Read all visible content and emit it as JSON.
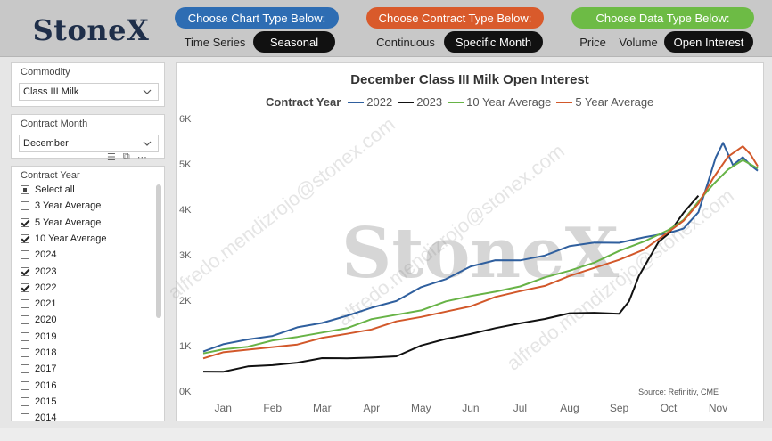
{
  "header": {
    "logo": "StoneX",
    "chart_type": {
      "label": "Choose Chart Type Below:",
      "options": [
        "Time Series",
        "Seasonal"
      ],
      "selected": "Seasonal"
    },
    "contract_type": {
      "label": "Choose Contract Type Below:",
      "options": [
        "Continuous",
        "Specific Month"
      ],
      "selected": "Specific Month"
    },
    "data_type": {
      "label": "Choose Data Type Below:",
      "options": [
        "Price",
        "Volume",
        "Open Interest"
      ],
      "selected": "Open Interest"
    }
  },
  "sidebar": {
    "commodity": {
      "label": "Commodity",
      "value": "Class III Milk"
    },
    "contract_month": {
      "label": "Contract Month",
      "value": "December"
    },
    "contract_year": {
      "label": "Contract Year",
      "items": [
        {
          "label": "Select all",
          "state": "partial"
        },
        {
          "label": "3 Year Average",
          "state": "unchecked"
        },
        {
          "label": "5 Year Average",
          "state": "checked"
        },
        {
          "label": "10 Year Average",
          "state": "checked"
        },
        {
          "label": "2024",
          "state": "unchecked"
        },
        {
          "label": "2023",
          "state": "checked"
        },
        {
          "label": "2022",
          "state": "checked"
        },
        {
          "label": "2021",
          "state": "unchecked"
        },
        {
          "label": "2020",
          "state": "unchecked"
        },
        {
          "label": "2019",
          "state": "unchecked"
        },
        {
          "label": "2018",
          "state": "unchecked"
        },
        {
          "label": "2017",
          "state": "unchecked"
        },
        {
          "label": "2016",
          "state": "unchecked"
        },
        {
          "label": "2015",
          "state": "unchecked"
        },
        {
          "label": "2014",
          "state": "unchecked"
        }
      ]
    }
  },
  "chart": {
    "source": "Source: Refinitiv, CME",
    "watermark_logo": "StoneX",
    "watermark_email": "alfredo.mendizrojo@stonex.com"
  },
  "chart_data": {
    "type": "line",
    "title": "December Class III Milk Open Interest",
    "legend_title": "Contract Year",
    "xlabel": "",
    "ylabel": "",
    "x_ticks": [
      "Jan",
      "Feb",
      "Mar",
      "Apr",
      "May",
      "Jun",
      "Jul",
      "Aug",
      "Sep",
      "Oct",
      "Nov"
    ],
    "y_ticks": [
      "0K",
      "1K",
      "2K",
      "3K",
      "4K",
      "5K",
      "6K"
    ],
    "ylim": [
      0,
      6000
    ],
    "xlim": [
      0.6,
      11.8
    ],
    "grid": false,
    "legend_position": "top",
    "series": [
      {
        "name": "2022",
        "color": "#2f5f9e",
        "x": [
          0.6,
          1.0,
          1.5,
          2.0,
          2.5,
          3.0,
          3.5,
          4.0,
          4.5,
          5.0,
          5.5,
          6.0,
          6.5,
          7.0,
          7.5,
          8.0,
          8.5,
          9.0,
          9.5,
          10.0,
          10.3,
          10.6,
          10.8,
          10.95,
          11.1,
          11.3,
          11.5,
          11.65,
          11.8
        ],
        "y": [
          870,
          1020,
          1150,
          1250,
          1380,
          1500,
          1680,
          1800,
          1970,
          2300,
          2500,
          2720,
          2880,
          2900,
          2950,
          3180,
          3280,
          3300,
          3360,
          3480,
          3600,
          3900,
          4600,
          5150,
          5500,
          4950,
          5150,
          5000,
          4850
        ]
      },
      {
        "name": "2023",
        "color": "#111111",
        "x": [
          0.6,
          1.0,
          1.5,
          2.0,
          2.5,
          3.0,
          3.5,
          4.0,
          4.5,
          5.0,
          5.5,
          6.0,
          6.5,
          7.0,
          7.5,
          8.0,
          8.5,
          9.0,
          9.2,
          9.4,
          9.6,
          9.8,
          10.0,
          10.3,
          10.6
        ],
        "y": [
          430,
          460,
          520,
          570,
          650,
          690,
          710,
          750,
          800,
          980,
          1150,
          1280,
          1350,
          1480,
          1600,
          1750,
          1700,
          1700,
          2000,
          2500,
          2900,
          3300,
          3500,
          3900,
          4300
        ]
      },
      {
        "name": "10 Year Average",
        "color": "#67b346",
        "x": [
          0.6,
          1.0,
          1.5,
          2.0,
          2.5,
          3.0,
          3.5,
          4.0,
          4.5,
          5.0,
          5.5,
          6.0,
          6.5,
          7.0,
          7.5,
          8.0,
          8.5,
          9.0,
          9.5,
          10.0,
          10.3,
          10.6,
          10.9,
          11.2,
          11.5,
          11.8
        ],
        "y": [
          830,
          920,
          1000,
          1080,
          1180,
          1300,
          1420,
          1560,
          1680,
          1800,
          1940,
          2080,
          2200,
          2340,
          2480,
          2650,
          2850,
          3050,
          3280,
          3560,
          3800,
          4150,
          4550,
          4900,
          5050,
          4900
        ]
      },
      {
        "name": "5 Year Average",
        "color": "#d2582a",
        "x": [
          0.6,
          1.0,
          1.5,
          2.0,
          2.5,
          3.0,
          3.5,
          4.0,
          4.5,
          5.0,
          5.5,
          6.0,
          6.5,
          7.0,
          7.5,
          8.0,
          8.5,
          9.0,
          9.5,
          10.0,
          10.3,
          10.6,
          10.9,
          11.2,
          11.5,
          11.65,
          11.8
        ],
        "y": [
          720,
          820,
          900,
          980,
          1060,
          1150,
          1260,
          1380,
          1500,
          1620,
          1760,
          1900,
          2050,
          2200,
          2340,
          2500,
          2700,
          2900,
          3150,
          3480,
          3750,
          4150,
          4650,
          5150,
          5400,
          5250,
          4950
        ]
      }
    ]
  }
}
